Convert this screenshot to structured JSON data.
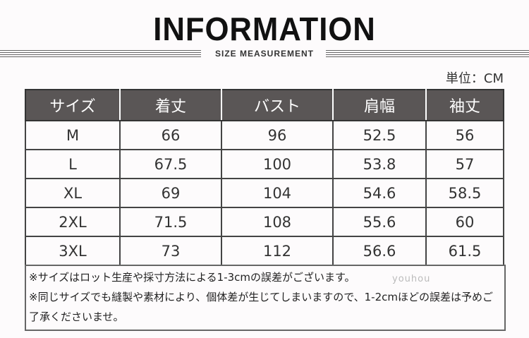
{
  "header": {
    "title": "INFORMATION",
    "subtitle": "SIZE MEASUREMENT",
    "unit": "単位：CM"
  },
  "table": {
    "columns": [
      "サイズ",
      "着丈",
      "バスト",
      "肩幅",
      "袖丈"
    ],
    "rows": [
      [
        "M",
        "66",
        "96",
        "52.5",
        "56"
      ],
      [
        "L",
        "67.5",
        "100",
        "53.8",
        "57"
      ],
      [
        "XL",
        "69",
        "104",
        "54.6",
        "58.5"
      ],
      [
        "2XL",
        "71.5",
        "108",
        "55.6",
        "60"
      ],
      [
        "3XL",
        "73",
        "112",
        "56.6",
        "61.5"
      ]
    ]
  },
  "notes": [
    "※サイズはロット生産や採寸方法による1-3cmの誤差がございます。",
    "※同じサイズでも縫製や素材により、個体差が生じてしまいますので、1-2cmほどの誤差は予めご了承くださいませ。"
  ],
  "watermark": "youhou"
}
